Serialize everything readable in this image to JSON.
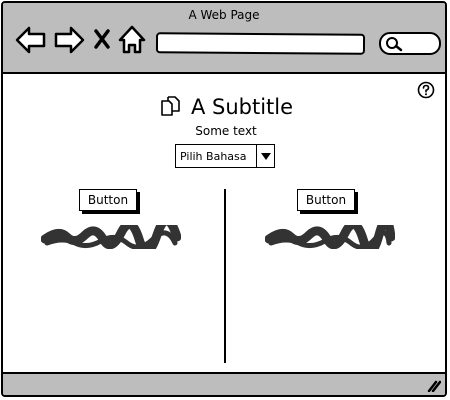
{
  "window": {
    "title": "A Web Page"
  },
  "toolbar": {
    "icons": [
      "back-arrow-icon",
      "forward-arrow-icon",
      "close-x-icon",
      "home-icon",
      "search-icon"
    ],
    "url_value": ""
  },
  "help": {
    "icon": "help-circle-icon"
  },
  "content": {
    "subtitle_icon": "copy-pages-icon",
    "subtitle": "A Subtitle",
    "text": "Some text",
    "language_select": {
      "selected": "Pilih Bahasa",
      "icon": "triangle-down-icon"
    }
  },
  "columns": [
    {
      "button_label": "Button"
    },
    {
      "button_label": "Button"
    }
  ],
  "statusbar": {
    "icon": "resize-grip-icon"
  },
  "colors": {
    "chrome": "#bdbdbd",
    "ink": "#000000",
    "background": "#ffffff"
  }
}
